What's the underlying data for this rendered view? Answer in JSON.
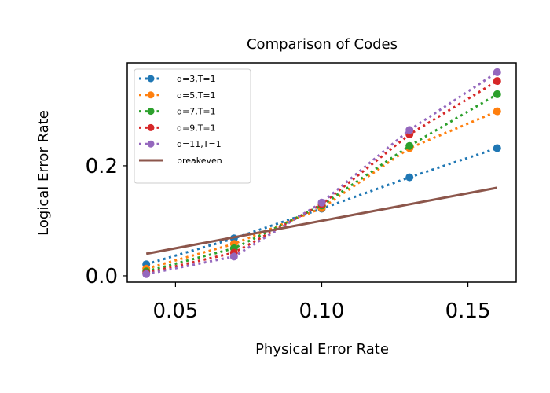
{
  "chart_data": {
    "type": "line",
    "title": "Comparison of Codes",
    "xlabel": "Physical Error Rate",
    "ylabel": "Logical Error Rate",
    "xlim": [
      0.0335,
      0.1665
    ],
    "ylim": [
      -0.0115,
      0.387
    ],
    "x_ticks": [
      {
        "value": 0.05,
        "label": "0.05"
      },
      {
        "value": 0.1,
        "label": "0.10"
      },
      {
        "value": 0.15,
        "label": "0.15"
      }
    ],
    "y_ticks": [
      {
        "value": 0.0,
        "label": "0.0"
      },
      {
        "value": 0.2,
        "label": "0.2"
      }
    ],
    "grid": false,
    "legend_position": "upper-left",
    "series": [
      {
        "name": "d=3,T=1",
        "color": "#1f77b4",
        "style": "dotted-markers",
        "x": [
          0.04,
          0.07,
          0.1,
          0.13,
          0.16
        ],
        "y": [
          0.021,
          0.068,
          0.122,
          0.179,
          0.232
        ]
      },
      {
        "name": "d=5,T=1",
        "color": "#ff7f0e",
        "style": "dotted-markers",
        "x": [
          0.04,
          0.07,
          0.1,
          0.13,
          0.16
        ],
        "y": [
          0.013,
          0.058,
          0.123,
          0.232,
          0.299
        ]
      },
      {
        "name": "d=7,T=1",
        "color": "#2ca02c",
        "style": "dotted-markers",
        "x": [
          0.04,
          0.07,
          0.1,
          0.13,
          0.16
        ],
        "y": [
          0.008,
          0.05,
          0.128,
          0.236,
          0.33
        ]
      },
      {
        "name": "d=9,T=1",
        "color": "#d62728",
        "style": "dotted-markers",
        "x": [
          0.04,
          0.07,
          0.1,
          0.13,
          0.16
        ],
        "y": [
          0.005,
          0.042,
          0.13,
          0.257,
          0.354
        ]
      },
      {
        "name": "d=11,T=1",
        "color": "#9467bd",
        "style": "dotted-markers",
        "x": [
          0.04,
          0.07,
          0.1,
          0.13,
          0.16
        ],
        "y": [
          0.003,
          0.035,
          0.133,
          0.265,
          0.37
        ]
      },
      {
        "name": "breakeven",
        "color": "#8c564b",
        "style": "solid",
        "x": [
          0.04,
          0.16
        ],
        "y": [
          0.04,
          0.16
        ]
      }
    ]
  }
}
